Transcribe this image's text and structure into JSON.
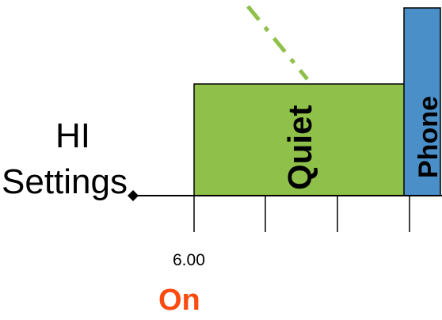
{
  "diagram": {
    "row_label_line1": "HI",
    "row_label_line2": "Settings",
    "segments": [
      {
        "label": "Quiet",
        "color": "#8fc04a"
      },
      {
        "label": "Phone",
        "color": "#4a8fc8"
      }
    ],
    "tick_label": "6.00",
    "state_label": "On",
    "state_label_color": "#ff4a10",
    "trend_line_color": "#8fc04a"
  }
}
